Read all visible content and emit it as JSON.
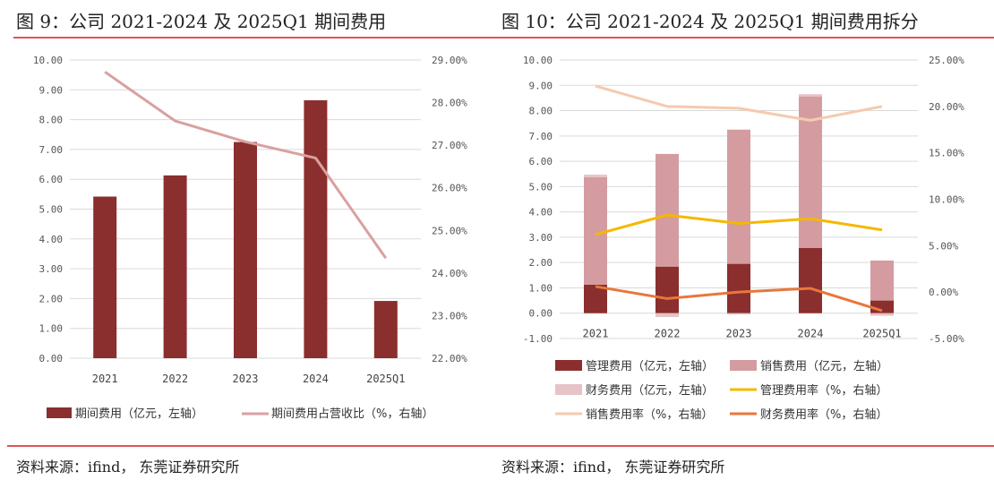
{
  "figures": [
    {
      "title": "图 9：公司 2021-2024 及 2025Q1 期间费用",
      "source": "资料来源：ifind， 东莞证券研究所"
    },
    {
      "title": "图 10：公司 2021-2024 及 2025Q1 期间费用拆分",
      "source": "资料来源：ifind， 东莞证券研究所"
    }
  ],
  "colors": {
    "rule": "#e05555",
    "grid": "#d9d9d9",
    "total_bar": "#8b2e2e",
    "ratio_line": "#d9a0a0",
    "mgmt_bar": "#8b2e2e",
    "sales_bar": "#d49ca0",
    "fin_bar": "#e6c3c6",
    "mgmt_rate": "#f5b800",
    "sales_rate": "#f6c9ae",
    "fin_rate": "#e8773a"
  },
  "chart_data": [
    {
      "type": "bar",
      "title": "图 9：公司 2021-2024 及 2025Q1 期间费用",
      "categories": [
        "2021",
        "2022",
        "2023",
        "2024",
        "2025Q1"
      ],
      "series": [
        {
          "name": "期间费用（亿元，左轴）",
          "kind": "bar",
          "axis": "left",
          "values": [
            5.42,
            6.13,
            7.25,
            8.65,
            1.92
          ]
        },
        {
          "name": "期间费用占营收比（%，右轴）",
          "kind": "line",
          "axis": "right",
          "values": [
            28.72,
            27.57,
            27.08,
            26.7,
            24.35
          ]
        }
      ],
      "left_axis": {
        "ylim": [
          0,
          10
        ],
        "ticks": [
          "0.00",
          "1.00",
          "2.00",
          "3.00",
          "4.00",
          "5.00",
          "6.00",
          "7.00",
          "8.00",
          "9.00",
          "10.00"
        ]
      },
      "right_axis": {
        "ylim": [
          22,
          29
        ],
        "ticks": [
          "22.00%",
          "23.00%",
          "24.00%",
          "25.00%",
          "26.00%",
          "27.00%",
          "28.00%",
          "29.00%"
        ]
      },
      "grid": true,
      "legend": "bottom"
    },
    {
      "type": "bar",
      "stacked": true,
      "title": "图 10：公司 2021-2024 及 2025Q1 期间费用拆分",
      "categories": [
        "2021",
        "2022",
        "2023",
        "2024",
        "2025Q1"
      ],
      "series": [
        {
          "name": "管理费用（亿元，左轴）",
          "kind": "bar",
          "axis": "left",
          "values": [
            1.13,
            1.84,
            1.95,
            2.58,
            0.5
          ]
        },
        {
          "name": "销售费用（亿元，左轴）",
          "kind": "bar",
          "axis": "left",
          "values": [
            4.24,
            4.45,
            5.3,
            5.97,
            1.58
          ]
        },
        {
          "name": "财务费用（亿元，左轴）",
          "kind": "bar",
          "axis": "left",
          "values": [
            0.1,
            -0.15,
            -0.05,
            0.1,
            -0.1
          ]
        },
        {
          "name": "管理费用率（%，右轴）",
          "kind": "line",
          "axis": "right",
          "values": [
            6.2,
            8.3,
            7.4,
            7.9,
            6.7
          ]
        },
        {
          "name": "销售费用率（%，右轴）",
          "kind": "line",
          "axis": "right",
          "values": [
            22.2,
            20.0,
            19.8,
            18.5,
            20.0
          ]
        },
        {
          "name": "财务费用率（%，右轴）",
          "kind": "line",
          "axis": "right",
          "values": [
            0.6,
            -0.7,
            0.0,
            0.4,
            -2.0
          ]
        }
      ],
      "left_axis": {
        "ylim": [
          -1,
          10
        ],
        "ticks": [
          "-1.00",
          "0.00",
          "1.00",
          "2.00",
          "3.00",
          "4.00",
          "5.00",
          "6.00",
          "7.00",
          "8.00",
          "9.00",
          "10.00"
        ]
      },
      "right_axis": {
        "ylim": [
          -5,
          25
        ],
        "ticks": [
          "-5.00%",
          "0.00%",
          "5.00%",
          "10.00%",
          "15.00%",
          "20.00%",
          "25.00%"
        ]
      },
      "grid": true,
      "legend": "bottom"
    }
  ]
}
